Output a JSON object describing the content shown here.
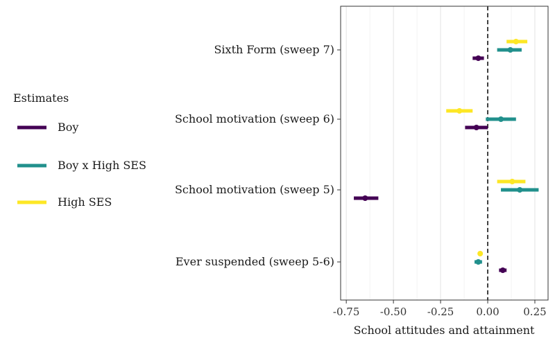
{
  "chart_data": {
    "type": "dot-whisker",
    "xlabel": "School attitudes and attainment",
    "xlim": [
      -0.78,
      0.32
    ],
    "xticks": [
      -0.75,
      -0.5,
      -0.25,
      0.0,
      0.25
    ],
    "xtick_labels": [
      "-0.75",
      "-0.50",
      "-0.25",
      "0.00",
      "0.25"
    ],
    "reference_line_x": 0,
    "grid": true,
    "legend": {
      "title": "Estimates",
      "position": "left"
    },
    "categories": [
      "Sixth Form (sweep 7)",
      "School motivation (sweep 6)",
      "School motivation (sweep 5)",
      "Ever suspended (sweep 5-6)"
    ],
    "series": [
      {
        "name": "Boy",
        "color": "#440154",
        "points": [
          {
            "category": "Sixth Form (sweep 7)",
            "estimate": -0.05,
            "low": -0.08,
            "high": -0.02
          },
          {
            "category": "School motivation (sweep 6)",
            "estimate": -0.06,
            "low": -0.12,
            "high": 0.0
          },
          {
            "category": "School motivation (sweep 5)",
            "estimate": -0.65,
            "low": -0.71,
            "high": -0.58
          },
          {
            "category": "Ever suspended (sweep 5-6)",
            "estimate": 0.08,
            "low": 0.06,
            "high": 0.1
          }
        ]
      },
      {
        "name": "Boy x High SES",
        "color": "#21908C",
        "points": [
          {
            "category": "Sixth Form (sweep 7)",
            "estimate": 0.12,
            "low": 0.05,
            "high": 0.18
          },
          {
            "category": "School motivation (sweep 6)",
            "estimate": 0.07,
            "low": -0.01,
            "high": 0.15
          },
          {
            "category": "School motivation (sweep 5)",
            "estimate": 0.17,
            "low": 0.07,
            "high": 0.27
          },
          {
            "category": "Ever suspended (sweep 5-6)",
            "estimate": -0.05,
            "low": -0.07,
            "high": -0.03
          }
        ]
      },
      {
        "name": "High SES",
        "color": "#FDE725",
        "points": [
          {
            "category": "Sixth Form (sweep 7)",
            "estimate": 0.15,
            "low": 0.1,
            "high": 0.21
          },
          {
            "category": "School motivation (sweep 6)",
            "estimate": -0.15,
            "low": -0.22,
            "high": -0.08
          },
          {
            "category": "School motivation (sweep 5)",
            "estimate": 0.13,
            "low": 0.05,
            "high": 0.2
          },
          {
            "category": "Ever suspended (sweep 5-6)",
            "estimate": -0.04,
            "low": -0.05,
            "high": -0.03
          }
        ]
      }
    ]
  }
}
